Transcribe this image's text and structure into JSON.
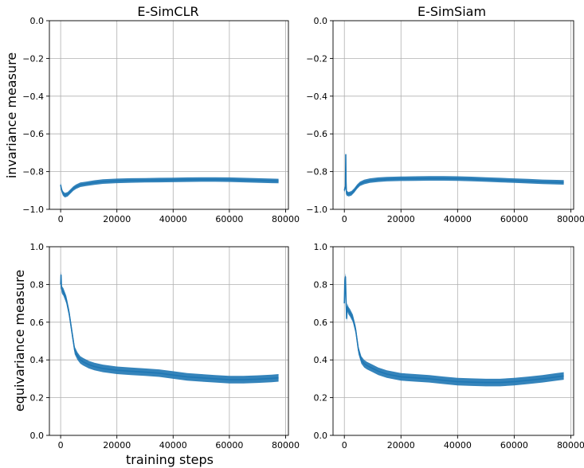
{
  "figure": {
    "series_color": "#1f77b4"
  },
  "chart_data": [
    {
      "type": "line",
      "title": "E-SimCLR",
      "xlabel": "",
      "ylabel": "invariance measure",
      "xlim": [
        -4000,
        81000
      ],
      "ylim": [
        -1.0,
        0.0
      ],
      "xticks": [
        0,
        20000,
        40000,
        60000,
        80000
      ],
      "xtick_labels": [
        "0",
        "20000",
        "40000",
        "60000",
        "80000"
      ],
      "yticks": [
        -1.0,
        -0.8,
        -0.6,
        -0.4,
        -0.2,
        0.0
      ],
      "ytick_labels": [
        "−1.0",
        "−0.8",
        "−0.6",
        "−0.4",
        "−0.2",
        "0.0"
      ],
      "grid": true,
      "band": 0.012,
      "series": [
        {
          "x": [
            0,
            300,
            800,
            1500,
            2500,
            3500,
            4500,
            5500,
            7000,
            9000,
            12000,
            15000,
            20000,
            25000,
            30000,
            35000,
            40000,
            45000,
            50000,
            55000,
            60000,
            65000,
            70000,
            75000,
            77500
          ],
          "y": [
            -0.87,
            -0.895,
            -0.915,
            -0.925,
            -0.92,
            -0.905,
            -0.89,
            -0.88,
            -0.87,
            -0.865,
            -0.858,
            -0.853,
            -0.849,
            -0.847,
            -0.846,
            -0.845,
            -0.844,
            -0.843,
            -0.842,
            -0.842,
            -0.843,
            -0.845,
            -0.847,
            -0.849,
            -0.85
          ]
        }
      ]
    },
    {
      "type": "line",
      "title": "E-SimSiam",
      "xlabel": "",
      "ylabel": "",
      "xlim": [
        -4000,
        81000
      ],
      "ylim": [
        -1.0,
        0.0
      ],
      "xticks": [
        0,
        20000,
        40000,
        60000,
        80000
      ],
      "xtick_labels": [
        "0",
        "20000",
        "40000",
        "60000",
        "80000"
      ],
      "yticks": [
        -1.0,
        -0.8,
        -0.6,
        -0.4,
        -0.2,
        0.0
      ],
      "ytick_labels": [
        "−1.0",
        "−0.8",
        "−0.6",
        "−0.4",
        "−0.2",
        "0.0"
      ],
      "grid": true,
      "band": 0.012,
      "series": [
        {
          "x": [
            0,
            400,
            500,
            600,
            700,
            800,
            1000,
            1500,
            2500,
            3500,
            4500,
            5500,
            7000,
            9000,
            12000,
            15000,
            20000,
            25000,
            30000,
            35000,
            40000,
            45000,
            50000,
            55000,
            60000,
            65000,
            70000,
            75000,
            77500
          ],
          "y": [
            -0.9,
            -0.88,
            -0.71,
            -0.85,
            -0.9,
            -0.92,
            -0.915,
            -0.92,
            -0.915,
            -0.9,
            -0.88,
            -0.865,
            -0.855,
            -0.848,
            -0.843,
            -0.84,
            -0.838,
            -0.837,
            -0.836,
            -0.836,
            -0.837,
            -0.839,
            -0.842,
            -0.845,
            -0.848,
            -0.851,
            -0.854,
            -0.856,
            -0.857
          ]
        }
      ]
    },
    {
      "type": "line",
      "title": "",
      "xlabel": "training steps",
      "ylabel": "equivariance measure",
      "xlim": [
        -4000,
        81000
      ],
      "ylim": [
        0.0,
        1.0
      ],
      "xticks": [
        0,
        20000,
        40000,
        60000,
        80000
      ],
      "xtick_labels": [
        "0",
        "20000",
        "40000",
        "60000",
        "80000"
      ],
      "yticks": [
        0.0,
        0.2,
        0.4,
        0.6,
        0.8,
        1.0
      ],
      "ytick_labels": [
        "0.0",
        "0.2",
        "0.4",
        "0.6",
        "0.8",
        "1.0"
      ],
      "grid": true,
      "band": 0.02,
      "series": [
        {
          "x": [
            0,
            150,
            300,
            500,
            1000,
            2000,
            3000,
            4000,
            5000,
            6000,
            7000,
            8000,
            10000,
            12000,
            15000,
            20000,
            25000,
            30000,
            35000,
            40000,
            45000,
            50000,
            55000,
            60000,
            65000,
            70000,
            75000,
            77500
          ],
          "y": [
            0.8,
            0.85,
            0.78,
            0.77,
            0.76,
            0.72,
            0.65,
            0.55,
            0.45,
            0.42,
            0.4,
            0.39,
            0.375,
            0.365,
            0.355,
            0.345,
            0.34,
            0.335,
            0.33,
            0.32,
            0.31,
            0.305,
            0.3,
            0.295,
            0.295,
            0.298,
            0.302,
            0.305
          ]
        }
      ]
    },
    {
      "type": "line",
      "title": "",
      "xlabel": "",
      "ylabel": "",
      "xlim": [
        -4000,
        81000
      ],
      "ylim": [
        0.0,
        1.0
      ],
      "xticks": [
        0,
        20000,
        40000,
        60000,
        80000
      ],
      "xtick_labels": [
        "0",
        "20000",
        "40000",
        "60000",
        "80000"
      ],
      "yticks": [
        0.0,
        0.2,
        0.4,
        0.6,
        0.8,
        1.0
      ],
      "ytick_labels": [
        "0.0",
        "0.2",
        "0.4",
        "0.6",
        "0.8",
        "1.0"
      ],
      "grid": true,
      "band": 0.02,
      "series": [
        {
          "x": [
            0,
            200,
            400,
            600,
            800,
            1000,
            1500,
            2000,
            3000,
            4000,
            5000,
            6000,
            7000,
            8000,
            10000,
            12000,
            15000,
            20000,
            25000,
            30000,
            35000,
            40000,
            45000,
            50000,
            55000,
            60000,
            65000,
            70000,
            75000,
            77500
          ],
          "y": [
            0.7,
            0.82,
            0.84,
            0.72,
            0.62,
            0.68,
            0.66,
            0.65,
            0.62,
            0.56,
            0.45,
            0.4,
            0.38,
            0.37,
            0.355,
            0.34,
            0.325,
            0.31,
            0.305,
            0.3,
            0.292,
            0.285,
            0.282,
            0.28,
            0.28,
            0.285,
            0.292,
            0.3,
            0.31,
            0.315
          ]
        }
      ]
    }
  ]
}
